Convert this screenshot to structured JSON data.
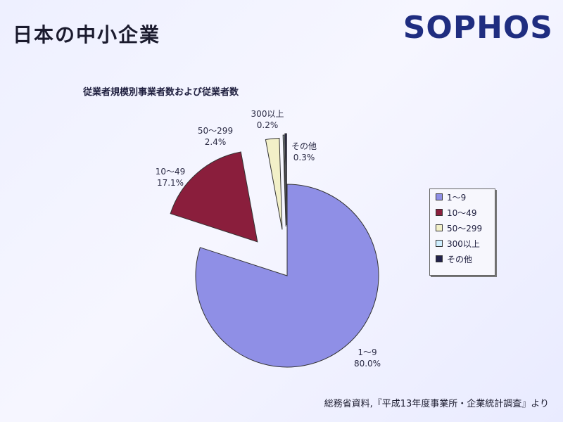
{
  "slide": {
    "title": "日本の中小企業",
    "brand": "SOPHOS",
    "source": "総務省資料,『平成13年度事業所・企業統計調査』より"
  },
  "chart_data": {
    "type": "pie",
    "title": "従業者規模別事業者数および従業者数",
    "slices": [
      {
        "name": "1〜9",
        "value": 80.0,
        "label": "80.0%",
        "color": "#8f8fe6"
      },
      {
        "name": "10〜49",
        "value": 17.1,
        "label": "17.1%",
        "color": "#8a1e3c"
      },
      {
        "name": "50〜299",
        "value": 2.4,
        "label": "2.4%",
        "color": "#f2f0c8"
      },
      {
        "name": "300以上",
        "value": 0.2,
        "label": "0.2%",
        "color": "#cfefff"
      },
      {
        "name": "その他",
        "value": 0.3,
        "label": "0.3%",
        "color": "#22224a"
      }
    ],
    "legend_position": "right"
  }
}
